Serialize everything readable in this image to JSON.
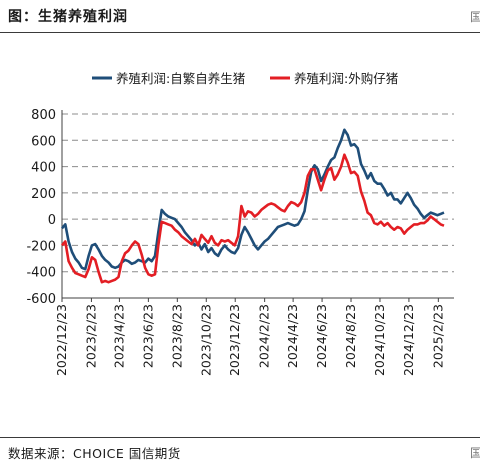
{
  "figure_title": "图：生猪养殖利润",
  "source": "数据来源：CHOICE 国信期货",
  "edge_marks": {
    "top_right": "国",
    "bottom_right": "国"
  },
  "colors": {
    "series_1": "#1f4e79",
    "series_2": "#e31e24",
    "grid": "#8c8c8c",
    "axis": "#404040"
  },
  "chart_data": {
    "type": "line",
    "title": "",
    "xlabel": "",
    "ylabel": "",
    "ylim": [
      -600,
      800
    ],
    "yticks": [
      800,
      600,
      400,
      200,
      0,
      -200,
      -400,
      -600
    ],
    "grid": "horizontal dashed",
    "legend_position": "top",
    "x_range": [
      "2022/12/23",
      "2025/3/28"
    ],
    "x_tick_labels": [
      "2022/12/23",
      "2023/2/23",
      "2023/4/23",
      "2023/6/23",
      "2023/8/23",
      "2023/10/23",
      "2023/12/23",
      "2024/2/23",
      "2024/4/23",
      "2024/6/23",
      "2024/8/23",
      "2024/10/23",
      "2024/12/23",
      "2025/2/23"
    ],
    "series": [
      {
        "name": "养殖利润:自繁自养生猪",
        "color": "#1f4e79",
        "points": [
          [
            "2022/12/23",
            -70
          ],
          [
            "2022/12/30",
            -40
          ],
          [
            "2023/1/6",
            -170
          ],
          [
            "2023/1/13",
            -250
          ],
          [
            "2023/1/20",
            -300
          ],
          [
            "2023/1/27",
            -330
          ],
          [
            "2023/2/3",
            -370
          ],
          [
            "2023/2/10",
            -380
          ],
          [
            "2023/2/17",
            -280
          ],
          [
            "2023/2/24",
            -200
          ],
          [
            "2023/3/3",
            -190
          ],
          [
            "2023/3/10",
            -230
          ],
          [
            "2023/3/17",
            -280
          ],
          [
            "2023/3/24",
            -310
          ],
          [
            "2023/3/31",
            -330
          ],
          [
            "2023/4/7",
            -360
          ],
          [
            "2023/4/14",
            -370
          ],
          [
            "2023/4/21",
            -360
          ],
          [
            "2023/4/28",
            -330
          ],
          [
            "2023/5/5",
            -310
          ],
          [
            "2023/5/12",
            -320
          ],
          [
            "2023/5/19",
            -340
          ],
          [
            "2023/5/26",
            -330
          ],
          [
            "2023/6/2",
            -310
          ],
          [
            "2023/6/9",
            -320
          ],
          [
            "2023/6/16",
            -330
          ],
          [
            "2023/6/23",
            -300
          ],
          [
            "2023/6/30",
            -320
          ],
          [
            "2023/7/7",
            -280
          ],
          [
            "2023/7/14",
            -100
          ],
          [
            "2023/7/21",
            70
          ],
          [
            "2023/7/28",
            40
          ],
          [
            "2023/8/4",
            20
          ],
          [
            "2023/8/11",
            10
          ],
          [
            "2023/8/18",
            0
          ],
          [
            "2023/8/25",
            -30
          ],
          [
            "2023/9/1",
            -60
          ],
          [
            "2023/9/8",
            -100
          ],
          [
            "2023/9/15",
            -130
          ],
          [
            "2023/9/22",
            -160
          ],
          [
            "2023/9/29",
            -200
          ],
          [
            "2023/10/6",
            -180
          ],
          [
            "2023/10/13",
            -230
          ],
          [
            "2023/10/20",
            -190
          ],
          [
            "2023/10/27",
            -250
          ],
          [
            "2023/11/3",
            -220
          ],
          [
            "2023/11/10",
            -260
          ],
          [
            "2023/11/17",
            -280
          ],
          [
            "2023/11/24",
            -230
          ],
          [
            "2023/12/1",
            -200
          ],
          [
            "2023/12/8",
            -230
          ],
          [
            "2023/12/15",
            -250
          ],
          [
            "2023/12/22",
            -260
          ],
          [
            "2023/12/29",
            -220
          ],
          [
            "2024/1/5",
            -120
          ],
          [
            "2024/1/12",
            -60
          ],
          [
            "2024/1/19",
            -100
          ],
          [
            "2024/1/26",
            -150
          ],
          [
            "2024/2/2",
            -200
          ],
          [
            "2024/2/9",
            -230
          ],
          [
            "2024/2/16",
            -200
          ],
          [
            "2024/2/23",
            -170
          ],
          [
            "2024/3/1",
            -150
          ],
          [
            "2024/3/8",
            -120
          ],
          [
            "2024/3/15",
            -90
          ],
          [
            "2024/3/22",
            -60
          ],
          [
            "2024/3/29",
            -50
          ],
          [
            "2024/4/5",
            -40
          ],
          [
            "2024/4/12",
            -30
          ],
          [
            "2024/4/19",
            -40
          ],
          [
            "2024/4/26",
            -50
          ],
          [
            "2024/5/3",
            -40
          ],
          [
            "2024/5/10",
            0
          ],
          [
            "2024/5/17",
            60
          ],
          [
            "2024/5/24",
            220
          ],
          [
            "2024/5/31",
            360
          ],
          [
            "2024/6/7",
            410
          ],
          [
            "2024/6/14",
            380
          ],
          [
            "2024/6/21",
            290
          ],
          [
            "2024/6/28",
            340
          ],
          [
            "2024/7/5",
            400
          ],
          [
            "2024/7/12",
            450
          ],
          [
            "2024/7/19",
            470
          ],
          [
            "2024/7/26",
            540
          ],
          [
            "2024/8/2",
            600
          ],
          [
            "2024/8/9",
            680
          ],
          [
            "2024/8/16",
            640
          ],
          [
            "2024/8/23",
            560
          ],
          [
            "2024/8/30",
            570
          ],
          [
            "2024/9/6",
            540
          ],
          [
            "2024/9/13",
            420
          ],
          [
            "2024/9/20",
            370
          ],
          [
            "2024/9/27",
            310
          ],
          [
            "2024/10/4",
            350
          ],
          [
            "2024/10/11",
            290
          ],
          [
            "2024/10/18",
            270
          ],
          [
            "2024/10/25",
            270
          ],
          [
            "2024/11/1",
            230
          ],
          [
            "2024/11/8",
            180
          ],
          [
            "2024/11/15",
            200
          ],
          [
            "2024/11/22",
            150
          ],
          [
            "2024/11/29",
            150
          ],
          [
            "2024/12/6",
            120
          ],
          [
            "2024/12/13",
            160
          ],
          [
            "2024/12/20",
            200
          ],
          [
            "2024/12/27",
            160
          ],
          [
            "2025/1/3",
            110
          ],
          [
            "2025/1/10",
            80
          ],
          [
            "2025/1/17",
            40
          ],
          [
            "2025/1/24",
            10
          ],
          [
            "2025/1/31",
            30
          ],
          [
            "2025/2/7",
            50
          ],
          [
            "2025/2/14",
            40
          ],
          [
            "2025/2/21",
            30
          ],
          [
            "2025/2/28",
            40
          ],
          [
            "2025/3/7",
            50
          ]
        ]
      },
      {
        "name": "养殖利润:外购仔猪",
        "color": "#e31e24",
        "points": [
          [
            "2022/12/23",
            -200
          ],
          [
            "2022/12/30",
            -170
          ],
          [
            "2023/1/6",
            -320
          ],
          [
            "2023/1/13",
            -370
          ],
          [
            "2023/1/20",
            -410
          ],
          [
            "2023/1/27",
            -420
          ],
          [
            "2023/2/3",
            -430
          ],
          [
            "2023/2/10",
            -440
          ],
          [
            "2023/2/17",
            -380
          ],
          [
            "2023/2/24",
            -290
          ],
          [
            "2023/3/3",
            -310
          ],
          [
            "2023/3/10",
            -400
          ],
          [
            "2023/3/17",
            -480
          ],
          [
            "2023/3/24",
            -470
          ],
          [
            "2023/3/31",
            -480
          ],
          [
            "2023/4/7",
            -470
          ],
          [
            "2023/4/14",
            -460
          ],
          [
            "2023/4/21",
            -440
          ],
          [
            "2023/4/28",
            -320
          ],
          [
            "2023/5/5",
            -260
          ],
          [
            "2023/5/12",
            -240
          ],
          [
            "2023/5/19",
            -200
          ],
          [
            "2023/5/26",
            -170
          ],
          [
            "2023/6/2",
            -190
          ],
          [
            "2023/6/9",
            -270
          ],
          [
            "2023/6/16",
            -370
          ],
          [
            "2023/6/23",
            -420
          ],
          [
            "2023/6/30",
            -430
          ],
          [
            "2023/7/7",
            -420
          ],
          [
            "2023/7/14",
            -200
          ],
          [
            "2023/7/21",
            -20
          ],
          [
            "2023/7/28",
            -30
          ],
          [
            "2023/8/4",
            -40
          ],
          [
            "2023/8/11",
            -50
          ],
          [
            "2023/8/18",
            -80
          ],
          [
            "2023/8/25",
            -100
          ],
          [
            "2023/9/1",
            -130
          ],
          [
            "2023/9/8",
            -150
          ],
          [
            "2023/9/15",
            -170
          ],
          [
            "2023/9/22",
            -190
          ],
          [
            "2023/9/29",
            -150
          ],
          [
            "2023/10/6",
            -200
          ],
          [
            "2023/10/13",
            -120
          ],
          [
            "2023/10/20",
            -150
          ],
          [
            "2023/10/27",
            -180
          ],
          [
            "2023/11/3",
            -130
          ],
          [
            "2023/11/10",
            -180
          ],
          [
            "2023/11/17",
            -200
          ],
          [
            "2023/11/24",
            -160
          ],
          [
            "2023/12/1",
            -170
          ],
          [
            "2023/12/8",
            -160
          ],
          [
            "2023/12/15",
            -180
          ],
          [
            "2023/12/22",
            -200
          ],
          [
            "2023/12/29",
            -130
          ],
          [
            "2024/1/5",
            100
          ],
          [
            "2024/1/12",
            20
          ],
          [
            "2024/1/19",
            60
          ],
          [
            "2024/1/26",
            50
          ],
          [
            "2024/2/2",
            20
          ],
          [
            "2024/2/9",
            40
          ],
          [
            "2024/2/16",
            70
          ],
          [
            "2024/2/23",
            90
          ],
          [
            "2024/3/1",
            110
          ],
          [
            "2024/3/8",
            120
          ],
          [
            "2024/3/15",
            110
          ],
          [
            "2024/3/22",
            90
          ],
          [
            "2024/3/29",
            70
          ],
          [
            "2024/4/5",
            60
          ],
          [
            "2024/4/12",
            100
          ],
          [
            "2024/4/19",
            130
          ],
          [
            "2024/4/26",
            120
          ],
          [
            "2024/5/3",
            100
          ],
          [
            "2024/5/10",
            130
          ],
          [
            "2024/5/17",
            200
          ],
          [
            "2024/5/24",
            330
          ],
          [
            "2024/5/31",
            380
          ],
          [
            "2024/6/7",
            380
          ],
          [
            "2024/6/14",
            300
          ],
          [
            "2024/6/21",
            220
          ],
          [
            "2024/6/28",
            300
          ],
          [
            "2024/7/5",
            370
          ],
          [
            "2024/7/12",
            390
          ],
          [
            "2024/7/19",
            300
          ],
          [
            "2024/7/26",
            340
          ],
          [
            "2024/8/2",
            400
          ],
          [
            "2024/8/9",
            490
          ],
          [
            "2024/8/16",
            430
          ],
          [
            "2024/8/23",
            350
          ],
          [
            "2024/8/30",
            360
          ],
          [
            "2024/9/6",
            330
          ],
          [
            "2024/9/13",
            210
          ],
          [
            "2024/9/20",
            140
          ],
          [
            "2024/9/27",
            50
          ],
          [
            "2024/10/4",
            30
          ],
          [
            "2024/10/11",
            -30
          ],
          [
            "2024/10/18",
            -40
          ],
          [
            "2024/10/25",
            -20
          ],
          [
            "2024/11/1",
            -50
          ],
          [
            "2024/11/8",
            -30
          ],
          [
            "2024/11/15",
            -60
          ],
          [
            "2024/11/22",
            -80
          ],
          [
            "2024/11/29",
            -60
          ],
          [
            "2024/12/6",
            -70
          ],
          [
            "2024/12/13",
            -110
          ],
          [
            "2024/12/20",
            -80
          ],
          [
            "2024/12/27",
            -60
          ],
          [
            "2025/1/3",
            -40
          ],
          [
            "2025/1/10",
            -40
          ],
          [
            "2025/1/17",
            -30
          ],
          [
            "2025/1/24",
            -30
          ],
          [
            "2025/1/31",
            -10
          ],
          [
            "2025/2/7",
            20
          ],
          [
            "2025/2/14",
            0
          ],
          [
            "2025/2/21",
            -20
          ],
          [
            "2025/2/28",
            -40
          ],
          [
            "2025/3/7",
            -50
          ]
        ]
      }
    ]
  }
}
